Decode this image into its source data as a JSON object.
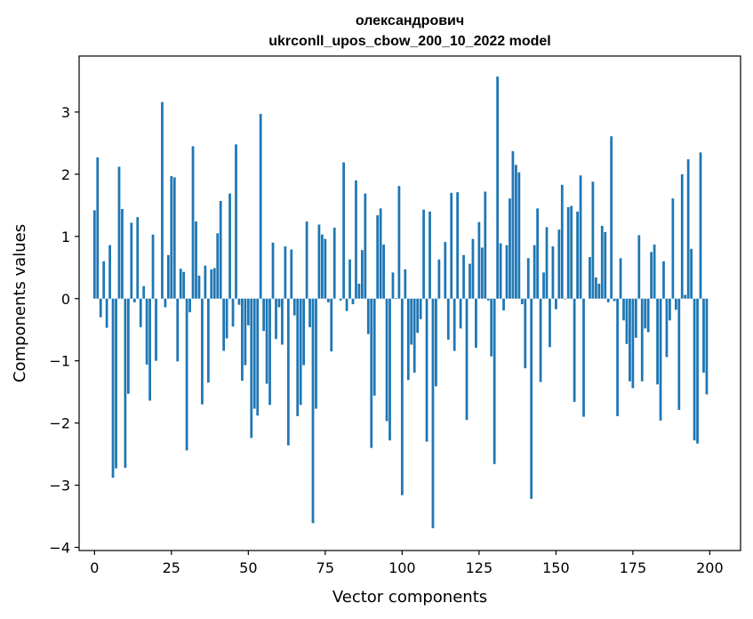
{
  "chart_data": {
    "type": "bar",
    "title": "олександрович",
    "subtitle": "ukrconll_upos_cbow_200_10_2022 model",
    "xlabel": "Vector components",
    "ylabel": "Components values",
    "xlim": [
      -5,
      210
    ],
    "ylim": [
      -4.05,
      3.9
    ],
    "xticks": [
      0,
      25,
      50,
      75,
      100,
      125,
      150,
      175,
      200
    ],
    "yticks": [
      -4,
      -3,
      -2,
      -1,
      0,
      1,
      2,
      3
    ],
    "bar_color": "#1f77b4",
    "grid": false,
    "x": [
      0,
      1,
      2,
      3,
      4,
      5,
      6,
      7,
      8,
      9,
      10,
      11,
      12,
      13,
      14,
      15,
      16,
      17,
      18,
      19,
      20,
      21,
      22,
      23,
      24,
      25,
      26,
      27,
      28,
      29,
      30,
      31,
      32,
      33,
      34,
      35,
      36,
      37,
      38,
      39,
      40,
      41,
      42,
      43,
      44,
      45,
      46,
      47,
      48,
      49,
      50,
      51,
      52,
      53,
      54,
      55,
      56,
      57,
      58,
      59,
      60,
      61,
      62,
      63,
      64,
      65,
      66,
      67,
      68,
      69,
      70,
      71,
      72,
      73,
      74,
      75,
      76,
      77,
      78,
      79,
      80,
      81,
      82,
      83,
      84,
      85,
      86,
      87,
      88,
      89,
      90,
      91,
      92,
      93,
      94,
      95,
      96,
      97,
      98,
      99,
      100,
      101,
      102,
      103,
      104,
      105,
      106,
      107,
      108,
      109,
      110,
      111,
      112,
      113,
      114,
      115,
      116,
      117,
      118,
      119,
      120,
      121,
      122,
      123,
      124,
      125,
      126,
      127,
      128,
      129,
      130,
      131,
      132,
      133,
      134,
      135,
      136,
      137,
      138,
      139,
      140,
      141,
      142,
      143,
      144,
      145,
      146,
      147,
      148,
      149,
      150,
      151,
      152,
      153,
      154,
      155,
      156,
      157,
      158,
      159,
      160,
      161,
      162,
      163,
      164,
      165,
      166,
      167,
      168,
      169,
      170,
      171,
      172,
      173,
      174,
      175,
      176,
      177,
      178,
      179,
      180,
      181,
      182,
      183,
      184,
      185,
      186,
      187,
      188,
      189,
      190,
      191,
      192,
      193,
      194,
      195,
      196,
      197,
      198,
      199
    ],
    "values": [
      1.42,
      2.27,
      -0.3,
      0.6,
      -0.47,
      0.86,
      -2.88,
      -2.73,
      2.12,
      1.44,
      -2.72,
      -1.53,
      1.22,
      -0.06,
      1.31,
      -0.46,
      0.2,
      -1.06,
      -1.64,
      1.03,
      -1.0,
      0.0,
      3.16,
      -0.14,
      0.7,
      1.97,
      1.95,
      -1.01,
      0.48,
      0.43,
      -2.44,
      -0.22,
      2.45,
      1.24,
      0.37,
      -1.7,
      0.53,
      -1.35,
      0.47,
      0.49,
      1.05,
      1.57,
      -0.84,
      -0.64,
      1.69,
      -0.45,
      2.48,
      -0.1,
      -1.32,
      -1.07,
      -0.43,
      -2.24,
      -1.77,
      -1.88,
      2.97,
      -0.52,
      -1.37,
      -1.71,
      0.9,
      -0.65,
      -0.14,
      -0.74,
      0.84,
      -2.36,
      0.79,
      -0.27,
      -1.89,
      -1.71,
      -1.07,
      1.24,
      -0.46,
      -3.61,
      -1.77,
      1.19,
      1.03,
      0.96,
      -0.06,
      -0.85,
      1.14,
      0.0,
      -0.03,
      2.19,
      -0.2,
      0.63,
      -0.09,
      1.9,
      0.24,
      0.78,
      1.69,
      -0.57,
      -2.4,
      -1.56,
      1.34,
      1.45,
      0.87,
      -1.97,
      -2.28,
      0.42,
      0.01,
      1.81,
      -3.16,
      0.47,
      -1.31,
      -0.74,
      -1.19,
      -0.55,
      -0.33,
      1.43,
      -2.3,
      1.4,
      -3.69,
      -1.41,
      0.63,
      0.0,
      0.91,
      -0.66,
      1.7,
      -0.84,
      1.71,
      -0.48,
      0.7,
      -1.95,
      0.56,
      0.96,
      -0.79,
      1.23,
      0.82,
      1.72,
      -0.03,
      -0.93,
      -2.66,
      3.57,
      0.89,
      -0.19,
      0.86,
      1.61,
      2.37,
      2.15,
      2.03,
      -0.09,
      -1.12,
      0.65,
      -3.22,
      0.86,
      1.45,
      -1.34,
      0.42,
      1.15,
      -0.78,
      0.84,
      -0.17,
      1.11,
      1.83,
      -0.01,
      1.47,
      1.49,
      -1.66,
      1.4,
      1.98,
      -1.9,
      0.0,
      0.67,
      1.88,
      0.34,
      0.24,
      1.17,
      1.07,
      -0.06,
      2.61,
      -0.04,
      -1.89,
      0.65,
      -0.35,
      -0.73,
      -1.33,
      -1.44,
      -0.63,
      1.02,
      -1.33,
      -0.48,
      -0.54,
      0.75,
      0.87,
      -1.38,
      -1.96,
      0.6,
      -0.94,
      -0.35,
      1.61,
      -0.18,
      -1.79,
      2.0,
      0.06,
      2.24,
      0.8,
      -2.28,
      -2.33,
      2.35,
      -1.19,
      -1.54
    ]
  }
}
